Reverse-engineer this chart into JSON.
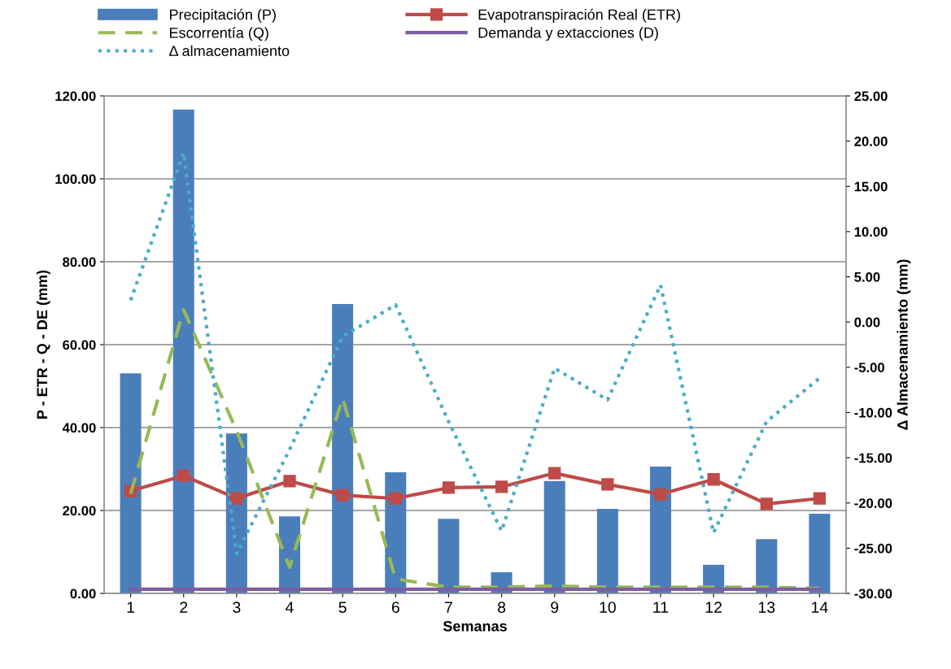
{
  "chart_data": {
    "type": "bar",
    "xlabel": "Semanas",
    "ylabel": "P - ETR - Q - DE (mm)",
    "y2label": "Δ Almacenamiento (mm)",
    "categories": [
      "1",
      "2",
      "3",
      "4",
      "5",
      "6",
      "7",
      "8",
      "9",
      "10",
      "11",
      "12",
      "13",
      "14"
    ],
    "series": [
      {
        "name": "Precipitación (P)",
        "color": "#4a7ebb",
        "values": [
          53.1,
          116.7,
          38.6,
          18.6,
          69.8,
          29.2,
          18.0,
          5.1,
          27.1,
          20.4,
          30.6,
          6.9,
          13.1,
          19.2
        ]
      },
      {
        "name": "Evapotranspiración Real (ETR)",
        "type": "line",
        "color": "#be4b48",
        "marker": "square",
        "line_style": "solid",
        "values": [
          24.7,
          28.4,
          22.9,
          27.1,
          23.7,
          22.9,
          25.5,
          25.7,
          29.0,
          26.3,
          23.9,
          27.5,
          21.6,
          22.9
        ]
      },
      {
        "name": "Escorrentía (Q)",
        "type": "line",
        "color": "#98b954",
        "marker": "none",
        "line_style": "dashed",
        "values": [
          24.0,
          68.4,
          39.2,
          6.3,
          47.1,
          3.5,
          1.5,
          1.5,
          1.8,
          1.5,
          1.5,
          1.5,
          1.5,
          1.2
        ]
      },
      {
        "name": "Demanda y extacciones (D)",
        "type": "line",
        "color": "#7d5fa0",
        "marker": "none",
        "line_style": "solid",
        "values": [
          1.0,
          1.0,
          1.0,
          1.0,
          1.0,
          1.0,
          1.0,
          1.0,
          1.0,
          1.0,
          1.0,
          1.0,
          1.0,
          1.0
        ]
      },
      {
        "name": "Δ almacenamiento",
        "type": "line",
        "axis": "y2",
        "color": "#4bacc6",
        "marker": "none",
        "line_style": "dotted",
        "values": [
          2.4,
          18.7,
          -25.6,
          -14.1,
          -1.6,
          1.9,
          -11.0,
          -23.1,
          -5.1,
          -8.6,
          4.1,
          -23.3,
          -11.0,
          -6.2
        ]
      }
    ],
    "ylim": [
      0,
      120
    ],
    "yticks": [
      {
        "value": 0,
        "label": "0.00"
      },
      {
        "value": 20,
        "label": "20.00"
      },
      {
        "value": 40,
        "label": "40.00"
      },
      {
        "value": 60,
        "label": "60.00"
      },
      {
        "value": 80,
        "label": "80.00"
      },
      {
        "value": 100,
        "label": "100.00"
      },
      {
        "value": 120,
        "label": "120.00"
      }
    ],
    "y2lim": [
      -30,
      25
    ],
    "y2ticks": [
      {
        "value": -30,
        "label": "-30.00"
      },
      {
        "value": -25,
        "label": "-25.00"
      },
      {
        "value": -20,
        "label": "-20.00"
      },
      {
        "value": -15,
        "label": "-15.00"
      },
      {
        "value": -10,
        "label": "-10.00"
      },
      {
        "value": -5,
        "label": "-5.00"
      },
      {
        "value": 0,
        "label": "0.00"
      },
      {
        "value": 5,
        "label": "5.00"
      },
      {
        "value": 10,
        "label": "10.00"
      },
      {
        "value": 15,
        "label": "15.00"
      },
      {
        "value": 20,
        "label": "20.00"
      },
      {
        "value": 25,
        "label": "25.00"
      }
    ],
    "grid": "y",
    "legend": "top"
  }
}
